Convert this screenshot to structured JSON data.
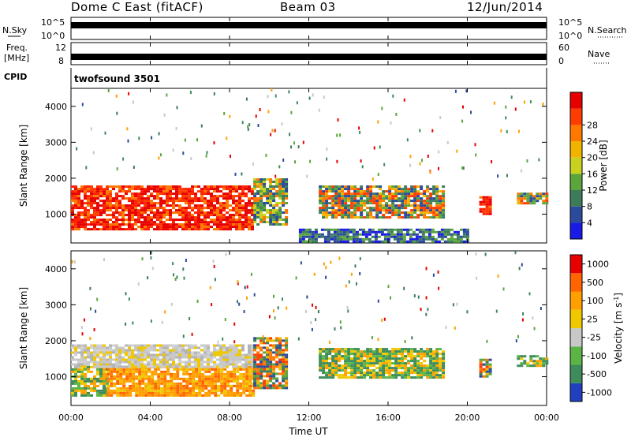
{
  "header": {
    "title": "Dome C East (fitACF)",
    "beam": "Beam 03",
    "date": "12/Jun/2014"
  },
  "strip_nsky": {
    "left_label": "N.Sky",
    "right_label": "N.Search",
    "left_ticks": [
      "10^5",
      "10^0"
    ],
    "right_ticks": [
      "10^5",
      "10^0"
    ]
  },
  "strip_freq": {
    "left_label_1": "Freq.",
    "left_label_2": "[MHz]",
    "right_label": "Nave",
    "left_ticks": [
      "12",
      "8"
    ],
    "right_ticks": [
      "60",
      "0"
    ]
  },
  "cpid": {
    "label": "CPID",
    "value": "twofsound 3501"
  },
  "chart_data": [
    {
      "type": "heatmap",
      "name": "power",
      "ylabel": "Slant Range [km]",
      "ylim": [
        200,
        4500
      ],
      "yticks": [
        1000,
        2000,
        3000,
        4000
      ],
      "xlim": [
        0,
        24
      ],
      "colorbar": {
        "label": "Power [dB]",
        "ticks": [
          "4",
          "8",
          "12",
          "16",
          "20",
          "24",
          "28"
        ],
        "colors": [
          "#1a1ae6",
          "#2c4a9c",
          "#3d7c5a",
          "#5aa63c",
          "#c8d21e",
          "#f0b400",
          "#ff7800",
          "#ff3c00",
          "#e60000"
        ]
      },
      "regions": [
        {
          "x": [
            0.0,
            9.2
          ],
          "y": [
            600,
            1800
          ],
          "level": "high"
        },
        {
          "x": [
            9.2,
            10.8
          ],
          "y": [
            700,
            2000
          ],
          "level": "mid"
        },
        {
          "x": [
            12.5,
            18.8
          ],
          "y": [
            900,
            1800
          ],
          "level": "mixed"
        },
        {
          "x": [
            20.6,
            21.1
          ],
          "y": [
            1000,
            1500
          ],
          "level": "high"
        },
        {
          "x": [
            22.5,
            24.0
          ],
          "y": [
            1300,
            1600
          ],
          "level": "mixed"
        },
        {
          "x": [
            11.5,
            20.0
          ],
          "y": [
            250,
            600
          ],
          "level": "low"
        }
      ]
    },
    {
      "type": "heatmap",
      "name": "velocity",
      "ylabel": "Slant Range [km]",
      "ylim": [
        200,
        4500
      ],
      "yticks": [
        1000,
        2000,
        3000,
        4000
      ],
      "xlim": [
        0,
        24
      ],
      "colorbar": {
        "label": "Velocity [m s^-1]",
        "ticks": [
          "1000",
          "500",
          "100",
          "25",
          "-25",
          "-100",
          "-500",
          "-1000"
        ],
        "colors": [
          "#2040c0",
          "#3d8c5a",
          "#5ab446",
          "#c8c8c8",
          "#f0c800",
          "#ffa000",
          "#ff6400",
          "#e60000"
        ]
      },
      "regions": [
        {
          "x": [
            0.0,
            1.8
          ],
          "y": [
            500,
            1300
          ],
          "level": "green"
        },
        {
          "x": [
            1.8,
            9.2
          ],
          "y": [
            500,
            1300
          ],
          "level": "orange"
        },
        {
          "x": [
            0.0,
            9.2
          ],
          "y": [
            1300,
            1900
          ],
          "level": "grey"
        },
        {
          "x": [
            9.2,
            10.8
          ],
          "y": [
            700,
            2100
          ],
          "level": "mixed"
        },
        {
          "x": [
            12.5,
            18.8
          ],
          "y": [
            1000,
            1800
          ],
          "level": "green"
        },
        {
          "x": [
            20.6,
            21.1
          ],
          "y": [
            1000,
            1500
          ],
          "level": "mixed"
        },
        {
          "x": [
            22.5,
            24.0
          ],
          "y": [
            1300,
            1600
          ],
          "level": "green"
        }
      ]
    }
  ],
  "xaxis": {
    "ticks": [
      "00:00",
      "04:00",
      "08:00",
      "12:00",
      "16:00",
      "20:00",
      "00:00"
    ],
    "label": "Time UT"
  }
}
